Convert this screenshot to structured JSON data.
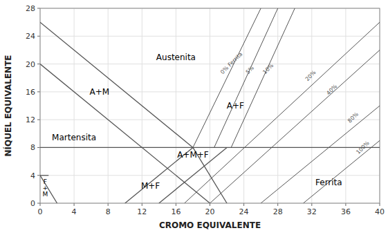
{
  "chart_data": {
    "type": "line",
    "xlabel": "CROMO EQUIVALENTE",
    "ylabel": "NÍQUEL EQUIVALENTE",
    "xlim": [
      0,
      40
    ],
    "ylim": [
      0,
      28
    ],
    "xticks": [
      0,
      4,
      8,
      12,
      16,
      20,
      24,
      28,
      32,
      36,
      40
    ],
    "yticks": [
      0,
      4,
      8,
      12,
      16,
      20,
      24,
      28
    ],
    "grid": true,
    "color": "#555555",
    "series": [
      {
        "x": [
          0,
          18
        ],
        "values": [
          26,
          8
        ]
      },
      {
        "x": [
          0,
          20
        ],
        "values": [
          20,
          0
        ]
      },
      {
        "x": [
          0,
          2
        ],
        "values": [
          4,
          0
        ]
      },
      {
        "x": [
          0,
          18
        ],
        "values": [
          8,
          8
        ]
      },
      {
        "x": [
          0,
          1
        ],
        "values": [
          4,
          4
        ]
      },
      {
        "x": [
          18,
          22
        ],
        "values": [
          8,
          0
        ]
      },
      {
        "x": [
          10,
          18
        ],
        "values": [
          0,
          8
        ]
      },
      {
        "x": [
          14,
          22
        ],
        "values": [
          0,
          8
        ]
      },
      {
        "x": [
          18,
          40
        ],
        "values": [
          8,
          8
        ]
      },
      {
        "x": [
          18.0,
          26.0
        ],
        "values": [
          8.0,
          28.0
        ],
        "label": {
          "text": "0% Ferrita",
          "x": 21.5,
          "y": 18.5
        }
      },
      {
        "x": [
          20.5,
          28.0
        ],
        "values": [
          8.0,
          28.0
        ],
        "label": {
          "text": "5%",
          "x": 24.5,
          "y": 18.5
        }
      },
      {
        "x": [
          22.5,
          30.0
        ],
        "values": [
          8.0,
          28.0
        ],
        "label": {
          "text": "10%",
          "x": 26.5,
          "y": 18.5
        }
      },
      {
        "x": [
          17.0,
          40.0
        ],
        "values": [
          0.0,
          26.0
        ],
        "label": {
          "text": "20%",
          "x": 31.5,
          "y": 17.5
        }
      },
      {
        "x": [
          20.0,
          40.0
        ],
        "values": [
          0.0,
          22.0
        ],
        "label": {
          "text": "40%",
          "x": 34.0,
          "y": 15.5
        }
      },
      {
        "x": [
          26.0,
          40.0
        ],
        "values": [
          0.0,
          14.0
        ],
        "label": {
          "text": "80%",
          "x": 36.5,
          "y": 11.5
        }
      },
      {
        "x": [
          31.0,
          40.0
        ],
        "values": [
          0.0,
          9.0
        ],
        "label": {
          "text": "100%",
          "x": 37.5,
          "y": 7.0
        }
      }
    ],
    "annotations": [
      {
        "text": "Austenita",
        "x": 16,
        "y": 21
      },
      {
        "text": "A+M",
        "x": 7,
        "y": 16
      },
      {
        "text": "Martensita",
        "x": 4,
        "y": 9.5
      },
      {
        "text": "A+F",
        "x": 23,
        "y": 14
      },
      {
        "text": "A+M+F",
        "x": 18,
        "y": 7.0
      },
      {
        "text": "M+F",
        "x": 13,
        "y": 2.5
      },
      {
        "text": "Ferrita",
        "x": 34,
        "y": 3.0
      },
      {
        "text": "F\n+\nM",
        "x": 0.6,
        "y": 2.2
      }
    ]
  }
}
